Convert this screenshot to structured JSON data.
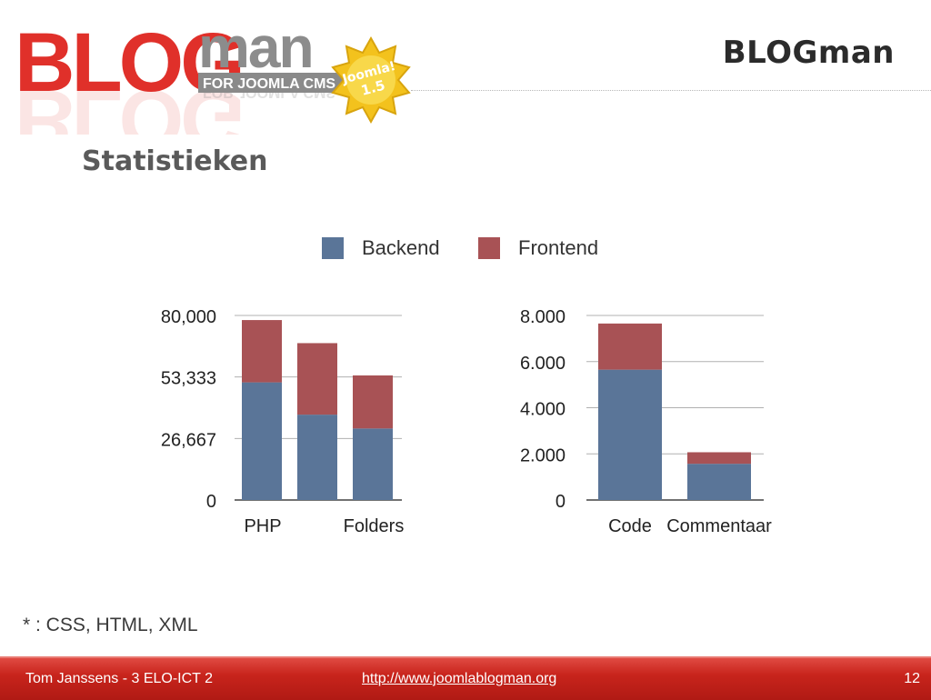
{
  "header": {
    "title": "BLOGman",
    "logo": {
      "word_blog": "BLOG",
      "word_man": "man",
      "tagline": "FOR JOOMLA CMS",
      "badge_line1": "Joomla!",
      "badge_line2": "1.5"
    }
  },
  "page": {
    "title": "Statistieken",
    "footnote": "* : CSS, HTML, XML"
  },
  "legend": [
    {
      "label": "Backend",
      "color": "#5a7598"
    },
    {
      "label": "Frontend",
      "color": "#a85255"
    }
  ],
  "chart_data": [
    {
      "type": "bar",
      "stacked": true,
      "categories": [
        "PHP",
        "",
        "Folders"
      ],
      "series": [
        {
          "name": "Backend",
          "values": [
            51000,
            37000,
            31000
          ]
        },
        {
          "name": "Frontend",
          "values": [
            27000,
            31000,
            23000
          ]
        }
      ],
      "ylim": [
        0,
        80000
      ],
      "yticks": [
        0,
        26667,
        53333,
        80000
      ],
      "ytick_labels": [
        "0",
        "26,667",
        "53,333",
        "80,000"
      ],
      "grid": true,
      "legend": "top"
    },
    {
      "type": "bar",
      "stacked": true,
      "categories": [
        "Code",
        "Commentaar"
      ],
      "series": [
        {
          "name": "Backend",
          "values": [
            5650,
            1570
          ]
        },
        {
          "name": "Frontend",
          "values": [
            2000,
            500
          ]
        }
      ],
      "ylim": [
        0,
        8000
      ],
      "yticks": [
        0,
        2000,
        4000,
        6000,
        8000
      ],
      "ytick_labels": [
        "0",
        "2.000",
        "4.000",
        "6.000",
        "8.000"
      ],
      "grid": true,
      "legend": "top"
    }
  ],
  "footer": {
    "author": "Tom Janssens - 3 ELO-ICT 2",
    "link": "http://www.joomlablogman.org",
    "page_number": "12"
  }
}
